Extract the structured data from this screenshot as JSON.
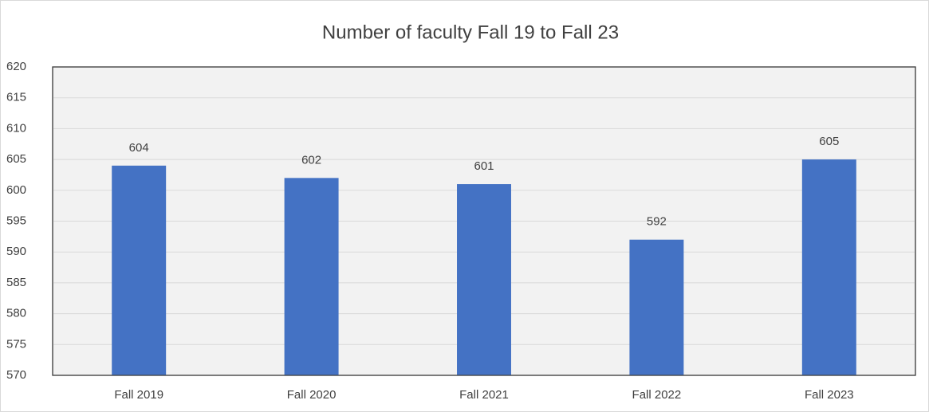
{
  "chart_data": {
    "type": "bar",
    "title": "Number of faculty Fall 19 to Fall 23",
    "categories": [
      "Fall 2019",
      "Fall 2020",
      "Fall 2021",
      "Fall 2022",
      "Fall 2023"
    ],
    "values": [
      604,
      602,
      601,
      592,
      605
    ],
    "color": "#4472c4",
    "ylim": [
      570,
      620
    ],
    "yticks": [
      570,
      575,
      580,
      585,
      590,
      595,
      600,
      605,
      610,
      615,
      620
    ],
    "grid": true
  }
}
